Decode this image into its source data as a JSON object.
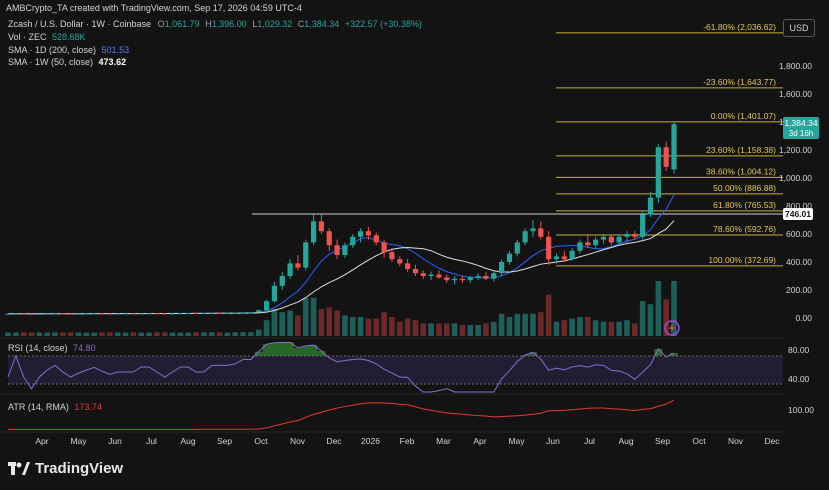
{
  "header": {
    "attribution": "AMBCrypto_TA created with TradingView.com, Sep 17, 2026 04:59 UTC-4",
    "symbol": "Zcash / U.S. Dollar · 1W · Coinbase",
    "ohlc": {
      "o": "1,061.79",
      "h": "1,396.00",
      "l": "1,029.32",
      "c": "1,384.34",
      "chg": "+322.57 (+30.38%)"
    },
    "indicators": [
      {
        "label": "Vol · ZEC",
        "value": "528.68K",
        "color": "#26a69a"
      },
      {
        "label": "SMA · 1D (200, close)",
        "value": "501.53",
        "color": "#2962ff"
      },
      {
        "label": "SMA · 1W (50, close)",
        "value": "473.62",
        "color": "#ffffff"
      }
    ]
  },
  "currency": "USD",
  "price_axis": {
    "min": -50,
    "max": 2100,
    "ticks": [
      0,
      200,
      400,
      600,
      800,
      1000,
      1200,
      1400,
      1600,
      1800
    ],
    "tick_labels": [
      "0.00",
      "200.00",
      "400.00",
      "600.00",
      "800.00",
      "1,000.00",
      "1,200.00",
      "1,400.00",
      "1,600.00",
      "1,800.00"
    ]
  },
  "last_price": {
    "value": 1384.34,
    "label": "1,384.34",
    "countdown": "3d 16h",
    "color": "#26a69a"
  },
  "level_tag": {
    "value": 746.01,
    "label": "746.01"
  },
  "fib_levels": [
    {
      "value": 2036.62,
      "label": "-61.80% (2,036.62)"
    },
    {
      "value": 1643.77,
      "label": "-23.60% (1,643.77)"
    },
    {
      "value": 1401.07,
      "label": "0.00% (1,401.07)"
    },
    {
      "value": 1158.38,
      "label": "23.60% (1,158.38)"
    },
    {
      "value": 1004.12,
      "label": "38.60% (1,004.12)"
    },
    {
      "value": 886.88,
      "label": "50.00% (886.88)"
    },
    {
      "value": 765.53,
      "label": "61.80% (765.53)"
    },
    {
      "value": 592.76,
      "label": "78.60% (592.76)"
    },
    {
      "value": 372.69,
      "label": "100.00% (372.69)"
    }
  ],
  "rsi": {
    "label": "RSI (14, close)",
    "value": "74.80",
    "ticks": [
      "80.00",
      "40.00"
    ]
  },
  "atr": {
    "label": "ATR (14, RMA)",
    "value": "173.74",
    "ticks": [
      "100.00"
    ]
  },
  "time_axis": [
    "Apr",
    "May",
    "Jun",
    "Jul",
    "Aug",
    "Sep",
    "Oct",
    "Nov",
    "Dec",
    "2026",
    "Feb",
    "Mar",
    "Apr",
    "May",
    "Jun",
    "Jul",
    "Aug",
    "Sep",
    "Oct",
    "Nov",
    "Dec"
  ],
  "brand": "TradingView",
  "chart_data": {
    "type": "candlestick",
    "interval": "1W",
    "candles": [
      [
        30,
        31,
        28,
        30
      ],
      [
        30,
        32,
        29,
        31
      ],
      [
        31,
        33,
        29,
        30
      ],
      [
        30,
        31,
        28,
        29
      ],
      [
        29,
        31,
        28,
        30
      ],
      [
        30,
        32,
        29,
        31
      ],
      [
        31,
        34,
        30,
        32
      ],
      [
        32,
        33,
        30,
        31
      ],
      [
        31,
        33,
        29,
        30
      ],
      [
        30,
        32,
        29,
        31
      ],
      [
        31,
        33,
        30,
        32
      ],
      [
        32,
        34,
        31,
        33
      ],
      [
        33,
        35,
        31,
        32
      ],
      [
        32,
        34,
        30,
        31
      ],
      [
        31,
        33,
        30,
        32
      ],
      [
        32,
        34,
        31,
        33
      ],
      [
        33,
        35,
        31,
        32
      ],
      [
        32,
        34,
        31,
        33
      ],
      [
        33,
        35,
        32,
        34
      ],
      [
        34,
        36,
        32,
        33
      ],
      [
        33,
        35,
        31,
        32
      ],
      [
        32,
        34,
        31,
        33
      ],
      [
        33,
        35,
        32,
        34
      ],
      [
        34,
        36,
        33,
        35
      ],
      [
        35,
        37,
        33,
        34
      ],
      [
        34,
        36,
        32,
        35
      ],
      [
        35,
        38,
        34,
        37
      ],
      [
        37,
        39,
        35,
        36
      ],
      [
        36,
        38,
        35,
        37
      ],
      [
        37,
        40,
        36,
        39
      ],
      [
        39,
        42,
        37,
        40
      ],
      [
        40,
        43,
        38,
        41
      ],
      [
        41,
        60,
        39,
        55
      ],
      [
        55,
        130,
        50,
        120
      ],
      [
        120,
        260,
        110,
        230
      ],
      [
        230,
        330,
        200,
        300
      ],
      [
        300,
        420,
        280,
        390
      ],
      [
        390,
        450,
        340,
        360
      ],
      [
        360,
        560,
        340,
        540
      ],
      [
        540,
        740,
        520,
        690
      ],
      [
        690,
        750,
        600,
        620
      ],
      [
        620,
        640,
        480,
        520
      ],
      [
        520,
        560,
        420,
        450
      ],
      [
        450,
        540,
        430,
        520
      ],
      [
        520,
        600,
        500,
        580
      ],
      [
        580,
        640,
        540,
        620
      ],
      [
        620,
        650,
        560,
        590
      ],
      [
        590,
        610,
        520,
        540
      ],
      [
        540,
        560,
        430,
        470
      ],
      [
        470,
        500,
        400,
        420
      ],
      [
        420,
        440,
        370,
        390
      ],
      [
        390,
        420,
        330,
        350
      ],
      [
        350,
        380,
        300,
        320
      ],
      [
        320,
        340,
        280,
        300
      ],
      [
        300,
        330,
        270,
        310
      ],
      [
        310,
        340,
        280,
        290
      ],
      [
        290,
        310,
        250,
        270
      ],
      [
        270,
        300,
        240,
        280
      ],
      [
        280,
        300,
        250,
        270
      ],
      [
        270,
        300,
        250,
        290
      ],
      [
        290,
        320,
        270,
        300
      ],
      [
        300,
        330,
        270,
        280
      ],
      [
        280,
        330,
        260,
        320
      ],
      [
        320,
        420,
        300,
        400
      ],
      [
        400,
        480,
        380,
        460
      ],
      [
        460,
        560,
        440,
        540
      ],
      [
        540,
        640,
        520,
        620
      ],
      [
        620,
        700,
        580,
        640
      ],
      [
        640,
        690,
        560,
        580
      ],
      [
        580,
        620,
        380,
        420
      ],
      [
        420,
        460,
        390,
        440
      ],
      [
        440,
        480,
        400,
        420
      ],
      [
        420,
        500,
        410,
        480
      ],
      [
        480,
        560,
        460,
        540
      ],
      [
        540,
        600,
        500,
        520
      ],
      [
        520,
        580,
        500,
        560
      ],
      [
        560,
        600,
        530,
        580
      ],
      [
        580,
        590,
        520,
        540
      ],
      [
        540,
        600,
        530,
        580
      ],
      [
        580,
        620,
        540,
        600
      ],
      [
        600,
        620,
        560,
        580
      ],
      [
        580,
        760,
        560,
        740
      ],
      [
        740,
        900,
        720,
        860
      ],
      [
        860,
        1240,
        820,
        1220
      ],
      [
        1220,
        1260,
        1050,
        1080
      ],
      [
        1061.79,
        1396,
        1029.32,
        1384.34
      ]
    ]
  }
}
